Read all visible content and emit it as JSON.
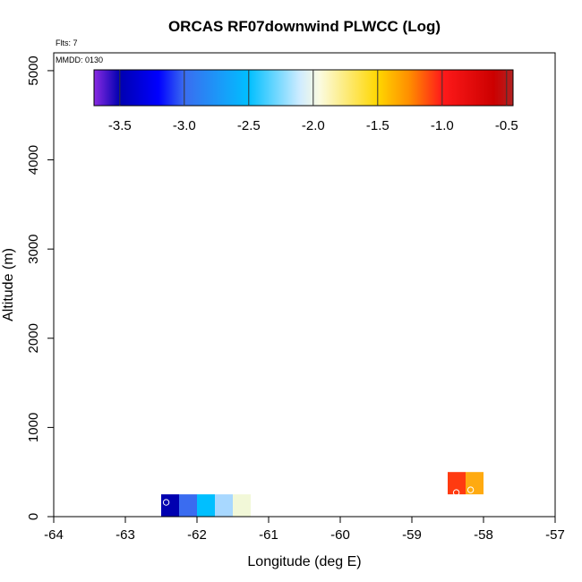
{
  "chart_data": {
    "type": "heatmap",
    "title": "ORCAS RF07downwind PLWCC (Log)",
    "flights_label": "Flts: 7",
    "date_label": "MMDD: 0130",
    "xlabel": "Longitude (deg E)",
    "ylabel": "Altitude (m)",
    "xlim": [
      -64,
      -57
    ],
    "ylim": [
      0,
      5200
    ],
    "x_ticks": [
      -64,
      -63,
      -62,
      -61,
      -60,
      -59,
      -58,
      -57
    ],
    "x_tick_labels": [
      "-64",
      "-63",
      "-62",
      "-61",
      "-60",
      "-59",
      "-58",
      "-57"
    ],
    "y_ticks": [
      0,
      1000,
      2000,
      3000,
      4000,
      5000
    ],
    "y_tick_labels": [
      "0",
      "1000",
      "2000",
      "3000",
      "4000",
      "5000"
    ],
    "colorbar": {
      "range": [
        -3.7,
        -0.45
      ],
      "ticks": [
        -3.5,
        -3.0,
        -2.5,
        -2.0,
        -1.5,
        -1.0,
        -0.5
      ],
      "tick_labels": [
        "-3.5",
        "-3.0",
        "-2.5",
        "-2.0",
        "-1.5",
        "-1.0",
        "-0.5"
      ],
      "color_stops": [
        {
          "value": -3.7,
          "color": "#8a2be2"
        },
        {
          "value": -3.5,
          "color": "#0000b0"
        },
        {
          "value": -3.2,
          "color": "#0000ff"
        },
        {
          "value": -3.0,
          "color": "#3a6cf0"
        },
        {
          "value": -2.5,
          "color": "#00bfff"
        },
        {
          "value": -2.1,
          "color": "#d0ecff"
        },
        {
          "value": -1.95,
          "color": "#fbfbe0"
        },
        {
          "value": -1.5,
          "color": "#ffd700"
        },
        {
          "value": -1.25,
          "color": "#ff8c00"
        },
        {
          "value": -1.0,
          "color": "#ff1a1a"
        },
        {
          "value": -0.6,
          "color": "#cc0000"
        },
        {
          "value": -0.45,
          "color": "#b22222"
        }
      ]
    },
    "cells": [
      {
        "lon": [
          -62.5,
          -62.25
        ],
        "alt": [
          0,
          250
        ],
        "color": "#0000b0"
      },
      {
        "lon": [
          -62.25,
          -62.0
        ],
        "alt": [
          0,
          250
        ],
        "color": "#3a6cf0"
      },
      {
        "lon": [
          -62.0,
          -61.75
        ],
        "alt": [
          0,
          250
        ],
        "color": "#00bfff"
      },
      {
        "lon": [
          -61.75,
          -61.5
        ],
        "alt": [
          0,
          250
        ],
        "color": "#a8d8ff"
      },
      {
        "lon": [
          -61.5,
          -61.25
        ],
        "alt": [
          0,
          250
        ],
        "color": "#f2f8d8"
      },
      {
        "lon": [
          -58.5,
          -58.25
        ],
        "alt": [
          250,
          500
        ],
        "color": "#ff3a10"
      },
      {
        "lon": [
          -58.25,
          -58.0
        ],
        "alt": [
          250,
          500
        ],
        "color": "#ffaa10"
      }
    ],
    "points": [
      {
        "lon": -62.43,
        "alt": 160
      },
      {
        "lon": -58.38,
        "alt": 270
      },
      {
        "lon": -58.18,
        "alt": 300
      }
    ]
  }
}
